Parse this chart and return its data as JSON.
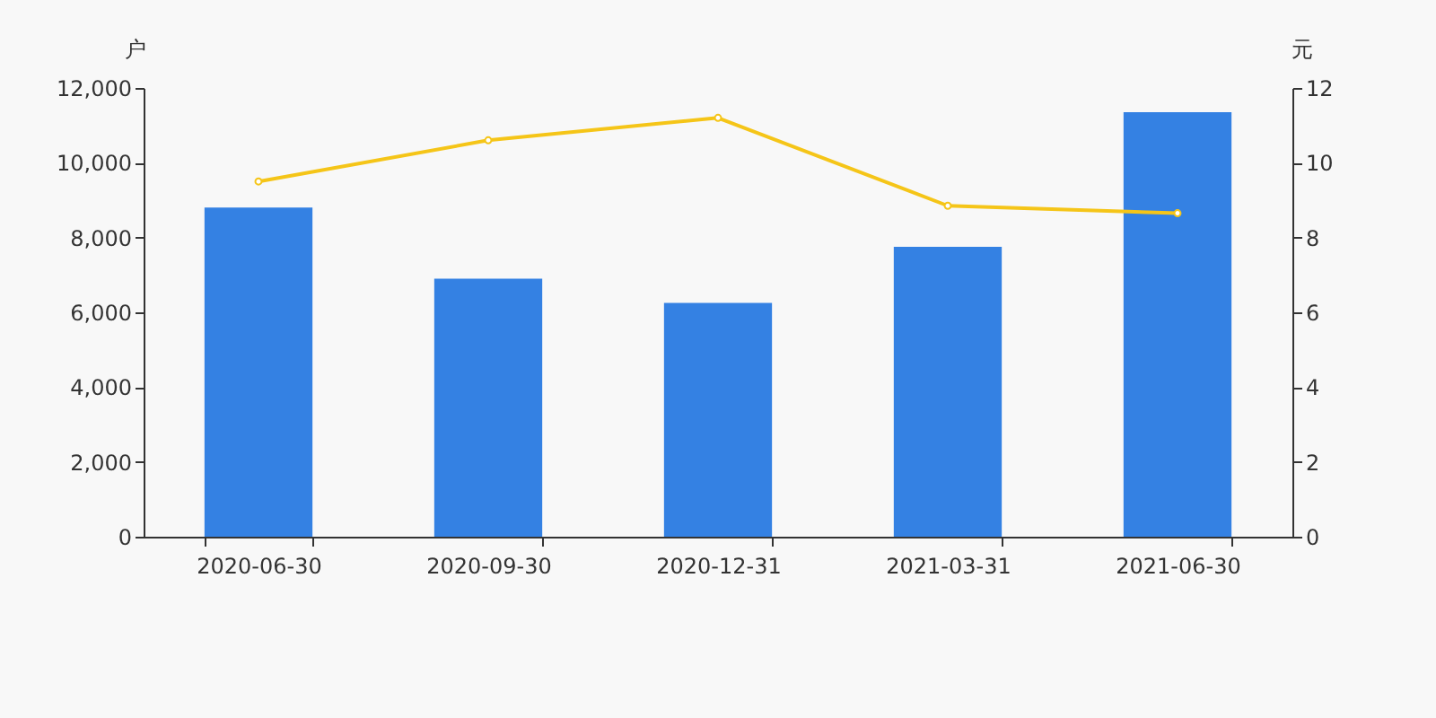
{
  "chart_data": {
    "type": "bar",
    "ylabel": "户",
    "y2label": "元",
    "categories": [
      "2020-06-30",
      "2020-09-30",
      "2020-12-31",
      "2021-03-31",
      "2021-06-30"
    ],
    "series": [
      {
        "color": "#3481e3",
        "values": [
          8800,
          6900,
          6250,
          7750,
          11350
        ]
      },
      {
        "type": "line",
        "axis": "y2",
        "color": "#f5c518",
        "marker": "circle",
        "values": [
          9.5,
          10.6,
          11.2,
          8.85,
          8.65
        ]
      }
    ],
    "ylim": [
      0,
      12000
    ],
    "yticks": [
      {
        "value": 0,
        "label": "0"
      },
      {
        "value": 2000,
        "label": "2,000"
      },
      {
        "value": 4000,
        "label": "4,000"
      },
      {
        "value": 6000,
        "label": "6,000"
      },
      {
        "value": 8000,
        "label": "8,000"
      },
      {
        "value": 10000,
        "label": "10,000"
      },
      {
        "value": 12000,
        "label": "12,000"
      }
    ],
    "y2lim": [
      0,
      12
    ],
    "y2ticks": [
      0,
      2,
      4,
      6,
      8,
      10,
      12
    ],
    "grid": false
  }
}
